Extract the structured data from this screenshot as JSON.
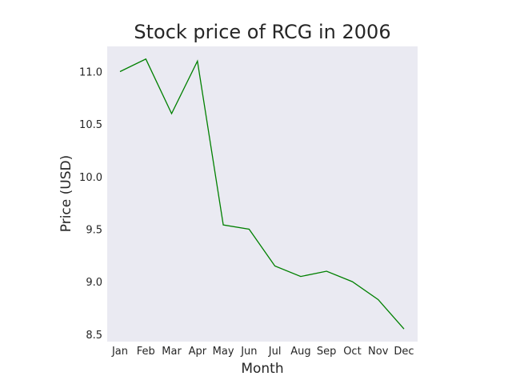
{
  "chart_data": {
    "type": "line",
    "title": "Stock price of RCG in 2006",
    "xlabel": "Month",
    "ylabel": "Price (USD)",
    "categories": [
      "Jan",
      "Feb",
      "Mar",
      "Apr",
      "May",
      "Jun",
      "Jul",
      "Aug",
      "Sep",
      "Oct",
      "Nov",
      "Dec"
    ],
    "series": [
      {
        "values": [
          11.0,
          11.12,
          10.6,
          11.1,
          9.54,
          9.5,
          9.15,
          9.05,
          9.1,
          9.0,
          8.83,
          8.55
        ],
        "color": "#008000"
      }
    ],
    "y_ticks": [
      "8.5",
      "9.0",
      "9.5",
      "10.0",
      "10.5",
      "11.0"
    ],
    "ylim": [
      8.43,
      11.24
    ],
    "grid": false,
    "background_color": "#eaeaf2"
  }
}
